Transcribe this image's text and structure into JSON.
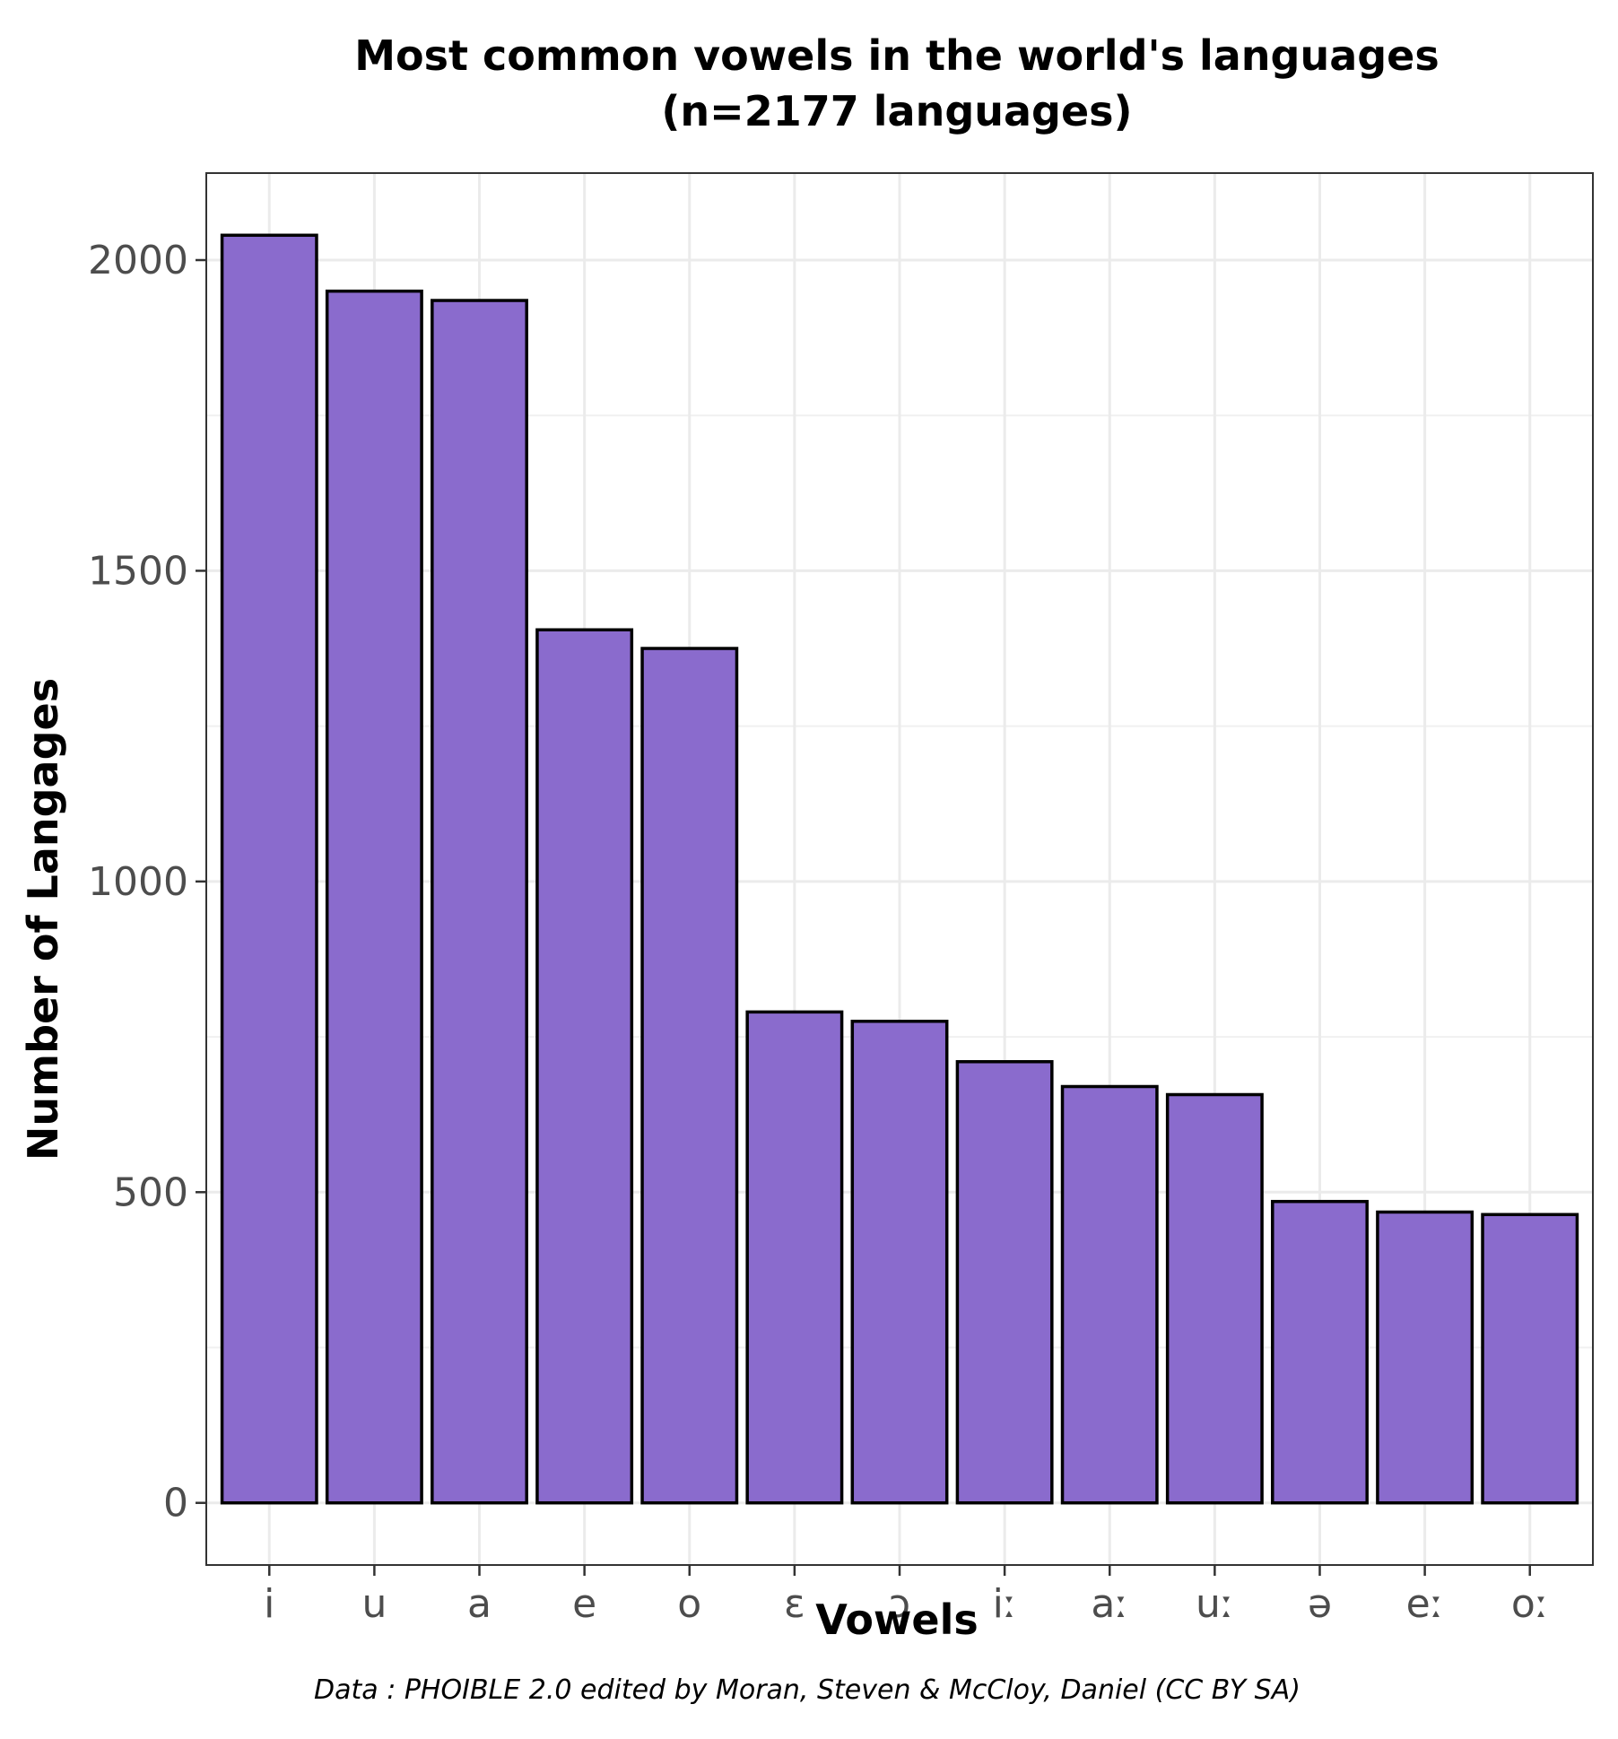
{
  "chart_data": {
    "type": "bar",
    "title": "Most common vowels in the world's languages",
    "subtitle": "(n=2177 languages)",
    "xlabel": "Vowels",
    "ylabel": "Number of Langages",
    "caption": "Data : PHOIBLE 2.0 edited by Moran, Steven & McCloy, Daniel (CC BY SA)",
    "categories": [
      "i",
      "u",
      "a",
      "e",
      "o",
      "ɛ",
      "ɔ",
      "iː",
      "aː",
      "uː",
      "ə",
      "eː",
      "oː"
    ],
    "values": [
      2040,
      1950,
      1935,
      1405,
      1375,
      790,
      775,
      710,
      670,
      657,
      485,
      468,
      464
    ],
    "ylim": [
      -100,
      2140
    ],
    "yticks": [
      0,
      500,
      1000,
      1500,
      2000
    ],
    "grid": true,
    "legend": "none",
    "bar_fill": "#8a6bcd",
    "bar_stroke": "#000000"
  }
}
